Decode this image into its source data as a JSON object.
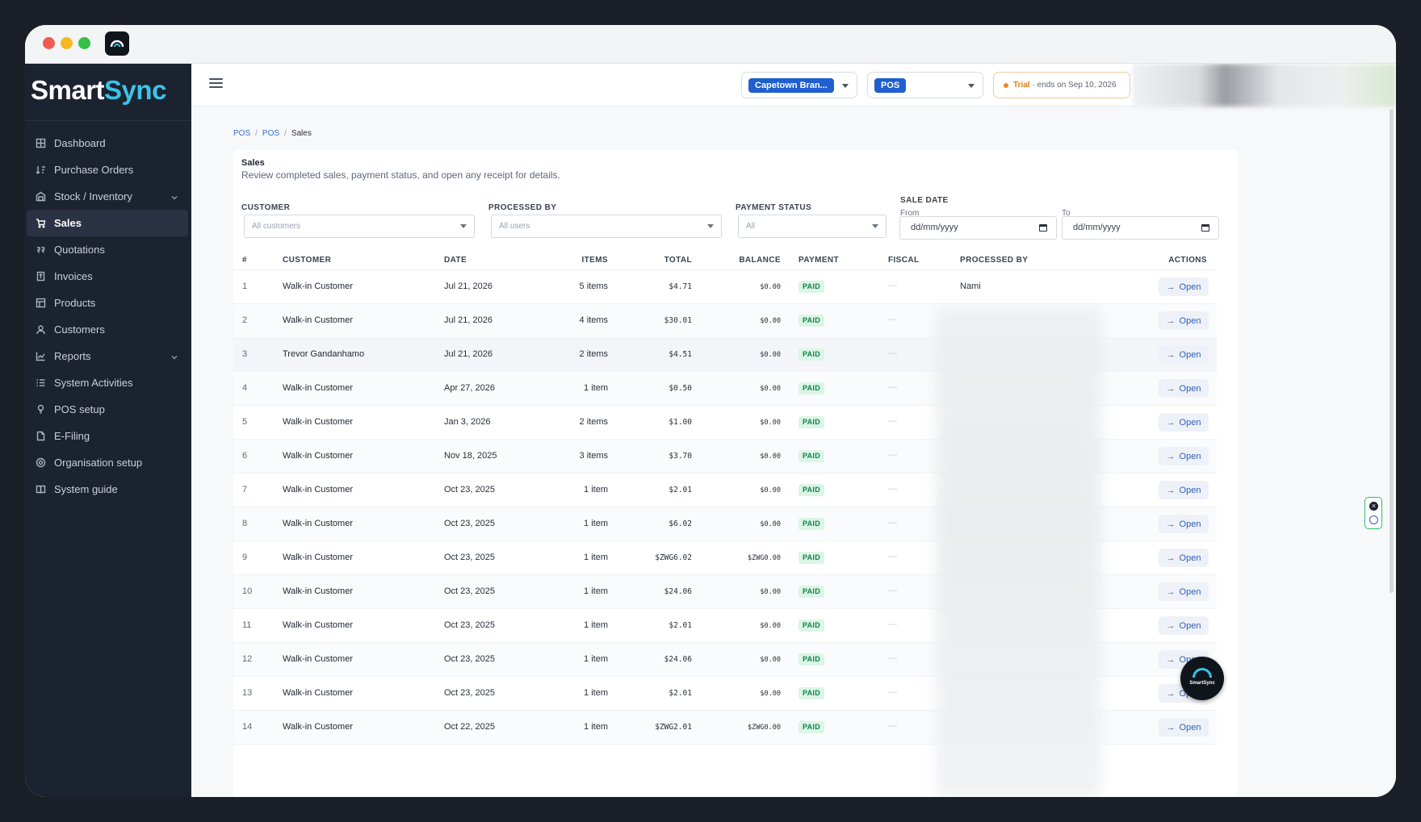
{
  "app": {
    "logo_main": "Smart",
    "logo_accent": "Sync"
  },
  "sidebar": {
    "items": [
      {
        "label": "Dashboard",
        "icon": "grid-icon"
      },
      {
        "label": "Purchase Orders",
        "icon": "sort-icon"
      },
      {
        "label": "Stock / Inventory",
        "icon": "warehouse-icon",
        "expandable": true
      },
      {
        "label": "Sales",
        "icon": "cart-icon",
        "active": true
      },
      {
        "label": "Quotations",
        "icon": "quote-icon"
      },
      {
        "label": "Invoices",
        "icon": "invoice-icon"
      },
      {
        "label": "Products",
        "icon": "table-icon"
      },
      {
        "label": "Customers",
        "icon": "user-icon"
      },
      {
        "label": "Reports",
        "icon": "chart-icon",
        "expandable": true
      },
      {
        "label": "System Activities",
        "icon": "list-icon"
      },
      {
        "label": "POS setup",
        "icon": "bulb-icon"
      },
      {
        "label": "E-Filing",
        "icon": "file-icon"
      },
      {
        "label": "Organisation setup",
        "icon": "gear-icon"
      },
      {
        "label": "System guide",
        "icon": "book-icon"
      }
    ]
  },
  "topbar": {
    "branch": "Capetown Bran...",
    "pos": "POS",
    "trial_label": "Trial",
    "trial_text": "· ends on Sep 10, 2026"
  },
  "breadcrumb": {
    "items": [
      "POS",
      "POS",
      "Sales"
    ]
  },
  "page": {
    "title": "Sales",
    "subtitle": "Review completed sales, payment status, and open any receipt for details."
  },
  "filters": {
    "customer_label": "CUSTOMER",
    "customer_placeholder": "All customers",
    "processed_label": "PROCESSED BY",
    "processed_placeholder": "All users",
    "payment_label": "PAYMENT STATUS",
    "payment_value": "All",
    "date_label": "SALE DATE",
    "from_label": "From",
    "to_label": "To",
    "date_placeholder": "dd/mm/yyyy"
  },
  "table": {
    "headers": {
      "num": "#",
      "customer": "CUSTOMER",
      "date": "DATE",
      "items": "ITEMS",
      "total": "TOTAL",
      "balance": "BALANCE",
      "payment": "PAYMENT",
      "fiscal": "FISCAL",
      "processed": "PROCESSED BY",
      "actions": "ACTIONS"
    },
    "open_label": "Open",
    "rows": [
      {
        "num": "1",
        "customer": "Walk-in Customer",
        "date": "Jul 21, 2026",
        "items": "5 items",
        "total": "$4.71",
        "balance": "$0.00",
        "payment": "PAID",
        "fiscal": "—",
        "processed": "Nami"
      },
      {
        "num": "2",
        "customer": "Walk-in Customer",
        "date": "Jul 21, 2026",
        "items": "4 items",
        "total": "$30.01",
        "balance": "$0.00",
        "payment": "PAID",
        "fiscal": "—",
        "processed": ""
      },
      {
        "num": "3",
        "customer": "Trevor Gandanhamo",
        "date": "Jul 21, 2026",
        "items": "2 items",
        "total": "$4.51",
        "balance": "$0.00",
        "payment": "PAID",
        "fiscal": "—",
        "processed": ""
      },
      {
        "num": "4",
        "customer": "Walk-in Customer",
        "date": "Apr 27, 2026",
        "items": "1 item",
        "total": "$0.50",
        "balance": "$0.00",
        "payment": "PAID",
        "fiscal": "—",
        "processed": ""
      },
      {
        "num": "5",
        "customer": "Walk-in Customer",
        "date": "Jan 3, 2026",
        "items": "2 items",
        "total": "$1.00",
        "balance": "$0.00",
        "payment": "PAID",
        "fiscal": "—",
        "processed": ""
      },
      {
        "num": "6",
        "customer": "Walk-in Customer",
        "date": "Nov 18, 2025",
        "items": "3 items",
        "total": "$3.70",
        "balance": "$0.00",
        "payment": "PAID",
        "fiscal": "—",
        "processed": ""
      },
      {
        "num": "7",
        "customer": "Walk-in Customer",
        "date": "Oct 23, 2025",
        "items": "1 item",
        "total": "$2.01",
        "balance": "$0.00",
        "payment": "PAID",
        "fiscal": "—",
        "processed": ""
      },
      {
        "num": "8",
        "customer": "Walk-in Customer",
        "date": "Oct 23, 2025",
        "items": "1 item",
        "total": "$6.02",
        "balance": "$0.00",
        "payment": "PAID",
        "fiscal": "—",
        "processed": ""
      },
      {
        "num": "9",
        "customer": "Walk-in Customer",
        "date": "Oct 23, 2025",
        "items": "1 item",
        "total": "$ZWG6.02",
        "balance": "$ZWG0.00",
        "payment": "PAID",
        "fiscal": "—",
        "processed": ""
      },
      {
        "num": "10",
        "customer": "Walk-in Customer",
        "date": "Oct 23, 2025",
        "items": "1 item",
        "total": "$24.06",
        "balance": "$0.00",
        "payment": "PAID",
        "fiscal": "—",
        "processed": ""
      },
      {
        "num": "11",
        "customer": "Walk-in Customer",
        "date": "Oct 23, 2025",
        "items": "1 item",
        "total": "$2.01",
        "balance": "$0.00",
        "payment": "PAID",
        "fiscal": "—",
        "processed": ""
      },
      {
        "num": "12",
        "customer": "Walk-in Customer",
        "date": "Oct 23, 2025",
        "items": "1 item",
        "total": "$24.06",
        "balance": "$0.00",
        "payment": "PAID",
        "fiscal": "—",
        "processed": ""
      },
      {
        "num": "13",
        "customer": "Walk-in Customer",
        "date": "Oct 23, 2025",
        "items": "1 item",
        "total": "$2.01",
        "balance": "$0.00",
        "payment": "PAID",
        "fiscal": "—",
        "processed": ""
      },
      {
        "num": "14",
        "customer": "Walk-in Customer",
        "date": "Oct 22, 2025",
        "items": "1 item",
        "total": "$ZWG2.01",
        "balance": "$ZWG0.00",
        "payment": "PAID",
        "fiscal": "—",
        "processed": ""
      }
    ]
  },
  "fab": {
    "label": "SmartSync"
  },
  "colors": {
    "sidebar_bg": "#1c2330",
    "accent": "#1f5fd0",
    "logo_accent": "#3cc3e8",
    "paid_bg": "#dbf5e6",
    "paid_text": "#14824a",
    "trial_accent": "#e07a18"
  }
}
